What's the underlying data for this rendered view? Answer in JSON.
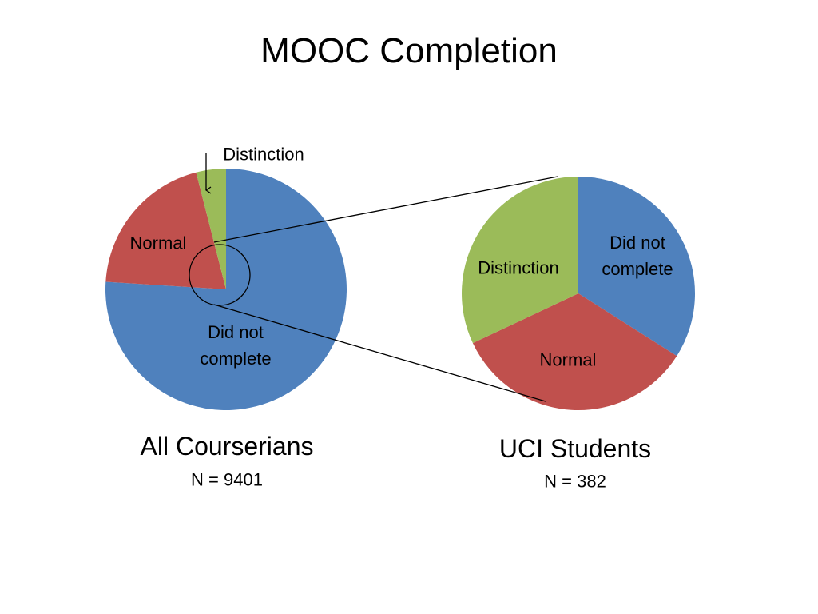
{
  "title": "MOOC Completion",
  "chart_data": [
    {
      "type": "pie",
      "title": "All Courserians",
      "subtitle": "N = 9401",
      "categories": [
        "Did not complete",
        "Normal",
        "Distinction"
      ],
      "values": [
        76,
        20,
        4
      ],
      "colors": [
        "#4f81bd",
        "#c0504d",
        "#9bbb59"
      ]
    },
    {
      "type": "pie",
      "title": "UCI Students",
      "subtitle": "N = 382",
      "categories": [
        "Did not complete",
        "Normal",
        "Distinction"
      ],
      "values": [
        34,
        34,
        32
      ],
      "colors": [
        "#4f81bd",
        "#c0504d",
        "#9bbb59"
      ]
    }
  ]
}
